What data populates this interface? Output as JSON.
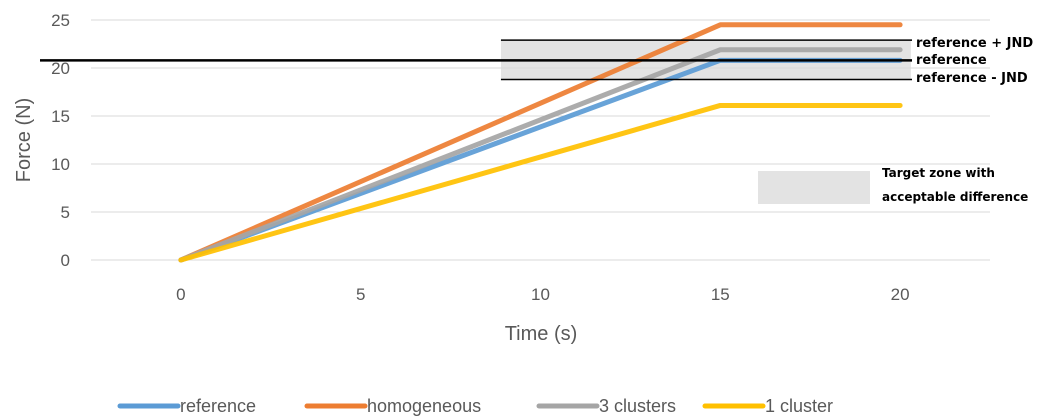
{
  "chart_data": {
    "type": "line",
    "title": "",
    "xlabel": "Time (s)",
    "ylabel": "Force (N)",
    "xlim": [
      -2.5,
      22.5
    ],
    "ylim": [
      0,
      25
    ],
    "x_ticks": [
      0,
      5,
      10,
      15,
      20
    ],
    "y_ticks": [
      0,
      5,
      10,
      15,
      20,
      25
    ],
    "grid": "horizontal",
    "legend_position": "bottom",
    "series": [
      {
        "name": "reference",
        "color": "#5b9bd5",
        "x": [
          0,
          15,
          20
        ],
        "y": [
          0,
          20.8,
          20.8
        ]
      },
      {
        "name": "homogeneous",
        "color": "#ed7d31",
        "x": [
          0,
          15,
          20
        ],
        "y": [
          0,
          24.5,
          24.5
        ]
      },
      {
        "name": "3 clusters",
        "color": "#a5a5a5",
        "x": [
          0,
          15,
          20
        ],
        "y": [
          0,
          21.9,
          21.9
        ]
      },
      {
        "name": "1 cluster",
        "color": "#ffc000",
        "x": [
          0,
          15,
          20
        ],
        "y": [
          0,
          16.1,
          16.1
        ]
      }
    ],
    "target_zone": {
      "x": [
        8.9,
        20.3
      ],
      "y": [
        18.8,
        22.9
      ],
      "color": "#d9d9d9"
    },
    "annotations": {
      "reference_upper_label": "reference + JND",
      "reference_label": "reference",
      "reference_lower_label": "reference - JND",
      "zone_label_line1": "Target zone with",
      "zone_label_line2": "acceptable difference"
    },
    "reference_lines": {
      "upper": 22.9,
      "reference": 20.8,
      "lower": 18.8
    }
  }
}
